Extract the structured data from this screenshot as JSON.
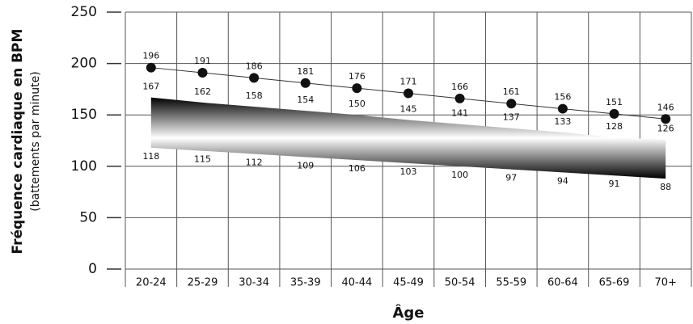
{
  "chart_data": {
    "type": "heart-rate-zones",
    "y_label": "Fréquence cardiaque en BPM",
    "y_sublabel": "(battements par minute)",
    "x_label": "Âge",
    "categories": [
      "20-24",
      "25-29",
      "30-34",
      "35-39",
      "40-44",
      "45-49",
      "50-54",
      "55-59",
      "60-64",
      "65-69",
      "70+"
    ],
    "series": [
      {
        "color": "#111111",
        "values": [
          196,
          191,
          186,
          181,
          176,
          171,
          166,
          161,
          156,
          151,
          146
        ]
      },
      {
        "color": "#111111",
        "values": [
          167,
          162,
          158,
          154,
          150,
          145,
          141,
          137,
          133,
          128,
          126
        ]
      },
      {
        "color": "#111111",
        "values": [
          118,
          115,
          112,
          109,
          106,
          103,
          100,
          97,
          94,
          91,
          88
        ]
      }
    ],
    "ylim": [
      0,
      250
    ],
    "yticks": [
      0,
      50,
      100,
      150,
      200,
      250
    ],
    "grid": true
  }
}
